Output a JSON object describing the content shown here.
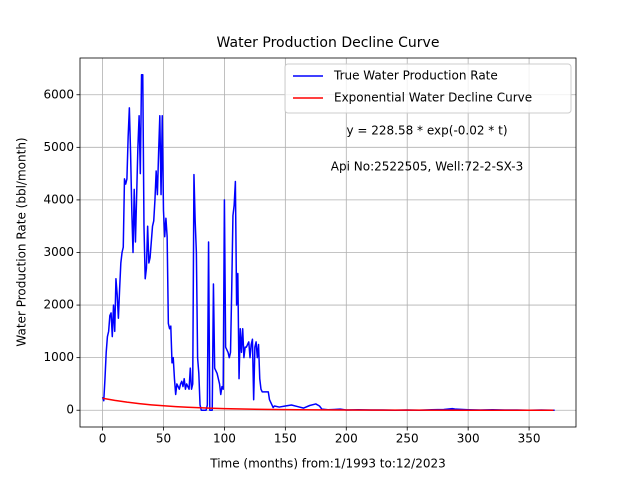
{
  "chart_data": {
    "type": "line",
    "title": "Water Production Decline Curve",
    "x_label": "Time (months) from:1/1993 to:12/2023",
    "y_label": "Water Production Rate (bbl/month)",
    "annotations": [
      "y = 228.58 * exp(-0.02 * t)",
      "Api No:2522505, Well:72-2-SX-3"
    ],
    "xlim": [
      -18.5,
      388.5
    ],
    "xticks": [
      0,
      50,
      100,
      150,
      200,
      250,
      300,
      350
    ],
    "ylim": [
      -319,
      6699
    ],
    "yticks": [
      0,
      1000,
      2000,
      3000,
      4000,
      5000,
      6000
    ],
    "grid": true,
    "legend": "upper right",
    "series": [
      {
        "name": "True Water Production Rate",
        "color": "#0000ff",
        "x": [
          0,
          1,
          2,
          3,
          4,
          5,
          6,
          7,
          8,
          9,
          10,
          11,
          12,
          13,
          14,
          15,
          16,
          17,
          18,
          19,
          20,
          21,
          22,
          23,
          24,
          25,
          26,
          27,
          28,
          29,
          30,
          31,
          32,
          33,
          34,
          35,
          36,
          37,
          38,
          39,
          40,
          41,
          42,
          43,
          44,
          45,
          46,
          47,
          48,
          49,
          50,
          51,
          52,
          53,
          54,
          55,
          56,
          57,
          58,
          59,
          60,
          61,
          62,
          63,
          64,
          65,
          66,
          67,
          68,
          69,
          70,
          71,
          72,
          73,
          74,
          75,
          76,
          77,
          78,
          79,
          80,
          81,
          82,
          83,
          84,
          85,
          86,
          87,
          88,
          89,
          90,
          91,
          92,
          93,
          94,
          95,
          96,
          97,
          98,
          99,
          100,
          101,
          102,
          103,
          104,
          105,
          106,
          107,
          108,
          109,
          110,
          111,
          112,
          113,
          114,
          115,
          116,
          117,
          118,
          119,
          120,
          121,
          122,
          123,
          124,
          125,
          126,
          127,
          128,
          129,
          130,
          131,
          132,
          133,
          134,
          135,
          136,
          137,
          138,
          139,
          140,
          141,
          145,
          150,
          155,
          160,
          165,
          170,
          175,
          178,
          180,
          185,
          190,
          195,
          200,
          210,
          220,
          230,
          240,
          250,
          260,
          270,
          280,
          287,
          290,
          300,
          310,
          320,
          330,
          340,
          350,
          360,
          371
        ],
        "values": [
          250,
          180,
          600,
          1100,
          1400,
          1500,
          1800,
          1850,
          1400,
          2000,
          1500,
          2500,
          2200,
          1750,
          2300,
          2800,
          3000,
          3100,
          4400,
          4300,
          4400,
          5200,
          5750,
          4900,
          3800,
          3000,
          4200,
          3200,
          4100,
          5000,
          5600,
          4500,
          6380,
          6380,
          3500,
          2500,
          2700,
          3500,
          2800,
          2900,
          3200,
          3500,
          3600,
          4000,
          4550,
          4100,
          4900,
          5600,
          4100,
          5600,
          3800,
          3300,
          3650,
          3300,
          1650,
          1550,
          1600,
          900,
          1000,
          600,
          300,
          500,
          450,
          400,
          500,
          550,
          450,
          600,
          400,
          500,
          450,
          400,
          800,
          400,
          500,
          4480,
          3600,
          3000,
          1000,
          700,
          100,
          0,
          0,
          0,
          0,
          0,
          100,
          3200,
          0,
          0,
          0,
          2400,
          800,
          750,
          700,
          600,
          500,
          300,
          450,
          400,
          4000,
          1200,
          1150,
          1100,
          1000,
          1100,
          2300,
          3700,
          3900,
          4350,
          2000,
          2600,
          600,
          1550,
          1100,
          1550,
          1000,
          1200,
          1200,
          1250,
          1300,
          1000,
          1250,
          1350,
          200,
          1200,
          1300,
          1000,
          1250,
          600,
          400,
          350,
          350,
          350,
          350,
          350,
          350,
          200,
          150,
          100,
          50,
          80,
          60,
          80,
          100,
          70,
          40,
          90,
          120,
          80,
          20,
          10,
          15,
          20,
          5,
          10,
          5,
          5,
          0,
          5,
          0,
          10,
          15,
          30,
          20,
          10,
          5,
          10,
          5,
          5,
          0,
          5,
          0
        ]
      },
      {
        "name": "Exponential Water Decline Curve",
        "color": "#ff0000",
        "x": [
          0,
          10,
          20,
          30,
          40,
          50,
          60,
          70,
          80,
          90,
          100,
          120,
          140,
          160,
          180,
          200,
          250,
          300,
          370
        ],
        "values": [
          228.6,
          187.1,
          153.2,
          125.4,
          102.7,
          84.1,
          68.8,
          56.4,
          46.1,
          37.8,
          30.9,
          20.7,
          13.9,
          9.3,
          6.2,
          4.2,
          1.5,
          0.6,
          0.1
        ]
      }
    ]
  }
}
